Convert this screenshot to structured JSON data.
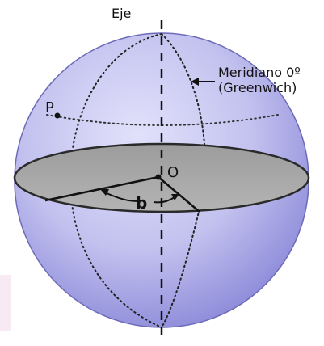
{
  "labels": {
    "axis": "Eje",
    "meridian_line1": "Meridiano 0º",
    "meridian_line2": "(Greenwich)",
    "point": "P",
    "center": "O",
    "angle": "b"
  },
  "colors": {
    "sphere_fill": "#c3c2ef",
    "sphere_shade": "#8a88d8",
    "equator_plane": "#a9a9a9",
    "lines": "#1a1a1a",
    "corner_tint": "#f7eaf2"
  }
}
